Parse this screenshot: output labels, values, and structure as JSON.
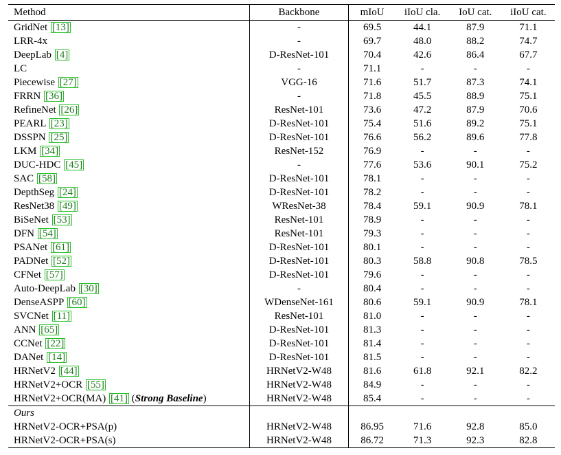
{
  "header": {
    "method": "Method",
    "backbone": "Backbone",
    "miou": "mIoU",
    "iiou_cla": "iIoU cla.",
    "iou_cat": "IoU cat.",
    "iiou_cat": "iIoU cat."
  },
  "rows": [
    {
      "name": "GridNet",
      "ref": "13",
      "backbone": "-",
      "miou": "69.5",
      "iiou_cla": "44.1",
      "iou_cat": "87.9",
      "iiou_cat": "71.1"
    },
    {
      "name": "LRR-4x",
      "ref": "",
      "backbone": "-",
      "miou": "69.7",
      "iiou_cla": "48.0",
      "iou_cat": "88.2",
      "iiou_cat": "74.7"
    },
    {
      "name": "DeepLab",
      "ref": "4",
      "backbone": "D-ResNet-101",
      "miou": "70.4",
      "iiou_cla": "42.6",
      "iou_cat": "86.4",
      "iiou_cat": "67.7"
    },
    {
      "name": "LC",
      "ref": "",
      "backbone": "-",
      "miou": "71.1",
      "iiou_cla": "-",
      "iou_cat": "-",
      "iiou_cat": "-"
    },
    {
      "name": "Piecewise",
      "ref": "27",
      "backbone": "VGG-16",
      "miou": "71.6",
      "iiou_cla": "51.7",
      "iou_cat": "87.3",
      "iiou_cat": "74.1"
    },
    {
      "name": "FRRN",
      "ref": "36",
      "backbone": "-",
      "miou": "71.8",
      "iiou_cla": "45.5",
      "iou_cat": "88.9",
      "iiou_cat": "75.1"
    },
    {
      "name": "RefineNet",
      "ref": "26",
      "backbone": "ResNet-101",
      "miou": "73.6",
      "iiou_cla": "47.2",
      "iou_cat": "87.9",
      "iiou_cat": "70.6"
    },
    {
      "name": "PEARL",
      "ref": "23",
      "backbone": "D-ResNet-101",
      "miou": "75.4",
      "iiou_cla": "51.6",
      "iou_cat": "89.2",
      "iiou_cat": "75.1"
    },
    {
      "name": "DSSPN",
      "ref": "25",
      "backbone": "D-ResNet-101",
      "miou": "76.6",
      "iiou_cla": "56.2",
      "iou_cat": "89.6",
      "iiou_cat": "77.8"
    },
    {
      "name": "LKM",
      "ref": "34",
      "backbone": "ResNet-152",
      "miou": "76.9",
      "iiou_cla": "-",
      "iou_cat": "-",
      "iiou_cat": "-"
    },
    {
      "name": "DUC-HDC",
      "ref": "45",
      "backbone": "-",
      "miou": "77.6",
      "iiou_cla": "53.6",
      "iou_cat": "90.1",
      "iiou_cat": "75.2"
    },
    {
      "name": "SAC",
      "ref": "58",
      "backbone": "D-ResNet-101",
      "miou": "78.1",
      "iiou_cla": "-",
      "iou_cat": "-",
      "iiou_cat": "-"
    },
    {
      "name": "DepthSeg",
      "ref": "24",
      "backbone": "D-ResNet-101",
      "miou": "78.2",
      "iiou_cla": "-",
      "iou_cat": "-",
      "iiou_cat": "-"
    },
    {
      "name": "ResNet38",
      "ref": "49",
      "backbone": "WResNet-38",
      "miou": "78.4",
      "iiou_cla": "59.1",
      "iou_cat": "90.9",
      "iiou_cat": "78.1"
    },
    {
      "name": "BiSeNet",
      "ref": "53",
      "backbone": "ResNet-101",
      "miou": "78.9",
      "iiou_cla": "-",
      "iou_cat": "-",
      "iiou_cat": "-"
    },
    {
      "name": "DFN",
      "ref": "54",
      "backbone": "ResNet-101",
      "miou": "79.3",
      "iiou_cla": "-",
      "iou_cat": "-",
      "iiou_cat": "-"
    },
    {
      "name": "PSANet",
      "ref": "61",
      "backbone": "D-ResNet-101",
      "miou": "80.1",
      "iiou_cla": "-",
      "iou_cat": "-",
      "iiou_cat": "-"
    },
    {
      "name": "PADNet",
      "ref": "52",
      "backbone": "D-ResNet-101",
      "miou": "80.3",
      "iiou_cla": "58.8",
      "iou_cat": "90.8",
      "iiou_cat": "78.5"
    },
    {
      "name": "CFNet",
      "ref": "57",
      "backbone": "D-ResNet-101",
      "miou": "79.6",
      "iiou_cla": "-",
      "iou_cat": "-",
      "iiou_cat": "-"
    },
    {
      "name": "Auto-DeepLab",
      "ref": "30",
      "backbone": "-",
      "miou": "80.4",
      "iiou_cla": "-",
      "iou_cat": "-",
      "iiou_cat": "-"
    },
    {
      "name": "DenseASPP",
      "ref": "60",
      "backbone": "WDenseNet-161",
      "miou": "80.6",
      "iiou_cla": "59.1",
      "iou_cat": "90.9",
      "iiou_cat": "78.1"
    },
    {
      "name": "SVCNet",
      "ref": "11",
      "backbone": "ResNet-101",
      "miou": "81.0",
      "iiou_cla": "-",
      "iou_cat": "-",
      "iiou_cat": "-"
    },
    {
      "name": "ANN",
      "ref": "65",
      "backbone": "D-ResNet-101",
      "miou": "81.3",
      "iiou_cla": "-",
      "iou_cat": "-",
      "iiou_cat": "-"
    },
    {
      "name": "CCNet",
      "ref": "22",
      "backbone": "D-ResNet-101",
      "miou": "81.4",
      "iiou_cla": "-",
      "iou_cat": "-",
      "iiou_cat": "-"
    },
    {
      "name": "DANet",
      "ref": "14",
      "backbone": "D-ResNet-101",
      "miou": "81.5",
      "iiou_cla": "-",
      "iou_cat": "-",
      "iiou_cat": "-"
    },
    {
      "name": "HRNetV2",
      "ref": "44",
      "backbone": "HRNetV2-W48",
      "miou": "81.6",
      "iiou_cla": "61.8",
      "iou_cat": "92.1",
      "iiou_cat": "82.2"
    },
    {
      "name": "HRNetV2+OCR",
      "ref": "55",
      "backbone": "HRNetV2-W48",
      "miou": "84.9",
      "iiou_cla": "-",
      "iou_cat": "-",
      "iiou_cat": "-"
    },
    {
      "name": "HRNetV2+OCR(MA)",
      "ref": "41",
      "suffix": "Strong Baseline",
      "backbone": "HRNetV2-W48",
      "miou": "85.4",
      "iiou_cla": "-",
      "iou_cat": "-",
      "iiou_cat": "-"
    }
  ],
  "ours": {
    "label": "Ours",
    "rows": [
      {
        "name": "HRNetV2-OCR+PSA(p)",
        "backbone": "HRNetV2-W48",
        "miou": "86.95",
        "iiou_cla": "71.6",
        "iou_cat": "92.8",
        "iiou_cat": "85.0",
        "bold": [
          "miou",
          "iiou_cla",
          "iou_cat",
          "iiou_cat"
        ]
      },
      {
        "name": "HRNetV2-OCR+PSA(s)",
        "backbone": "HRNetV2-W48",
        "miou": "86.72",
        "iiou_cla": "71.3",
        "iou_cat": "92.3",
        "iiou_cat": "82.8",
        "bold": [
          "miou",
          "iiou_cla"
        ]
      }
    ]
  }
}
